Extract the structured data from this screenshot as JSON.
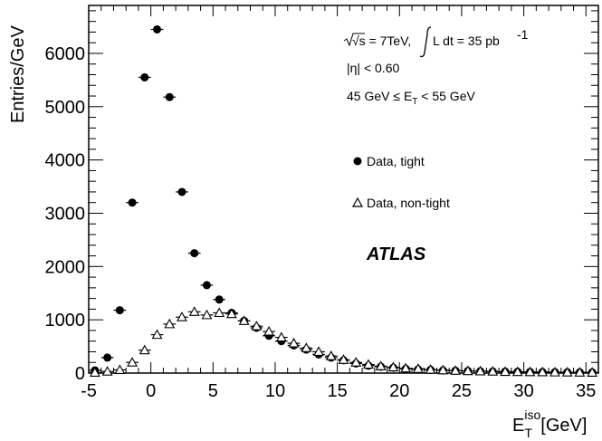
{
  "chart_data": {
    "type": "scatter",
    "xlabel": "E",
    "xlabel_sub": "T",
    "xlabel_sup": "iso",
    "xlabel_unit": "[GeV]",
    "ylabel": "Entries/GeV",
    "xlim": [
      -5,
      36
    ],
    "ylim": [
      0,
      6900
    ],
    "xticks": [
      -5,
      0,
      5,
      10,
      15,
      20,
      25,
      30,
      35
    ],
    "yticks": [
      0,
      1000,
      2000,
      3000,
      4000,
      5000,
      6000
    ],
    "x_error_half_width": 0.5,
    "annotations": {
      "energy_line_lhs": "√s = 7TeV,",
      "energy_line_rhs": "L dt = 35 pb",
      "energy_line_sup": "-1",
      "eta_line": "|η| < 0.60",
      "et_range_lhs": "45 GeV ≤ E",
      "et_range_sub": "T",
      "et_range_rhs": " < 55 GeV",
      "experiment": "ATLAS"
    },
    "legend": {
      "placement": "right",
      "entries": [
        "Data, tight",
        "Data, non-tight"
      ]
    },
    "series": [
      {
        "name": "Data, tight",
        "marker": "filled-circle",
        "x": [
          -4.5,
          -3.5,
          -2.5,
          -1.5,
          -0.5,
          0.5,
          1.5,
          2.5,
          3.5,
          4.5,
          5.5,
          6.5,
          7.5,
          8.5,
          9.5,
          10.5,
          11.5,
          12.5,
          13.5,
          14.5,
          15.5,
          16.5,
          17.5,
          18.5,
          19.5,
          20.5,
          21.5,
          22.5,
          23.5,
          24.5,
          25.5,
          26.5,
          27.5,
          28.5,
          29.5,
          30.5,
          31.5,
          32.5,
          33.5,
          34.5,
          35.5
        ],
        "y": [
          50,
          290,
          1180,
          3200,
          5550,
          6450,
          5180,
          3400,
          2250,
          1650,
          1380,
          1130,
          980,
          850,
          700,
          600,
          520,
          440,
          350,
          290,
          240,
          180,
          140,
          120,
          100,
          80,
          70,
          60,
          50,
          45,
          40,
          35,
          30,
          28,
          25,
          22,
          20,
          18,
          15,
          14,
          12
        ]
      },
      {
        "name": "Data, non-tight",
        "marker": "open-triangle",
        "x": [
          -4.5,
          -3.5,
          -2.5,
          -1.5,
          -0.5,
          0.5,
          1.5,
          2.5,
          3.5,
          4.5,
          5.5,
          6.5,
          7.5,
          8.5,
          9.5,
          10.5,
          11.5,
          12.5,
          13.5,
          14.5,
          15.5,
          16.5,
          17.5,
          18.5,
          19.5,
          20.5,
          21.5,
          22.5,
          23.5,
          24.5,
          25.5,
          26.5,
          27.5,
          28.5,
          29.5,
          30.5,
          31.5,
          32.5,
          33.5,
          34.5,
          35.5
        ],
        "y": [
          10,
          30,
          60,
          200,
          430,
          720,
          920,
          1050,
          1150,
          1090,
          1130,
          1110,
          980,
          880,
          780,
          670,
          560,
          470,
          400,
          320,
          250,
          200,
          160,
          130,
          110,
          90,
          80,
          65,
          55,
          45,
          40,
          35,
          30,
          25,
          22,
          20,
          18,
          15,
          14,
          12,
          10
        ]
      }
    ]
  }
}
